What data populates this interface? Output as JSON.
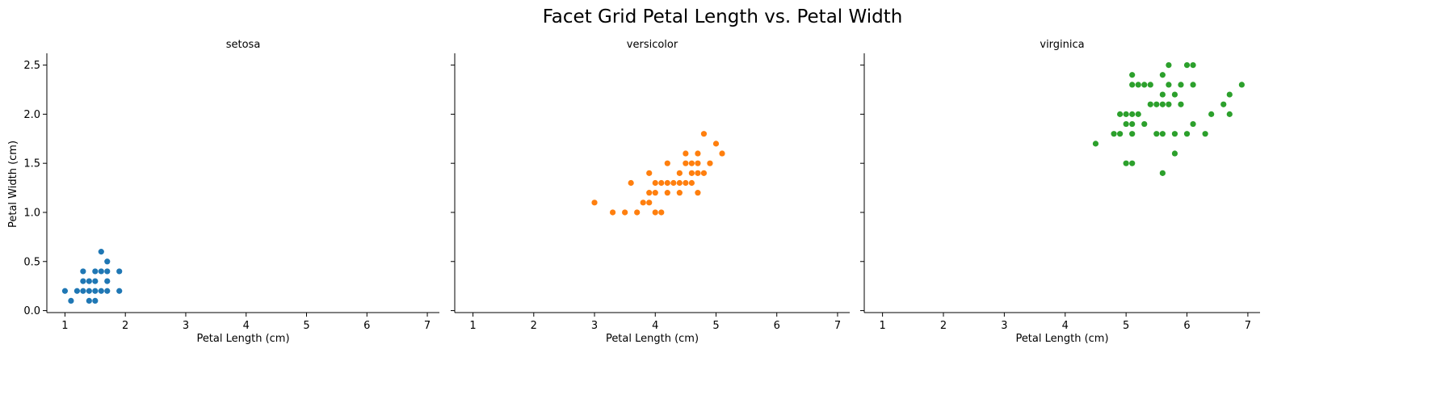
{
  "chart_data": {
    "type": "scatter",
    "title": "Facet Grid Petal Length  vs. Petal Width",
    "ylabel": "Petal Width (cm)",
    "xlim": [
      0.7,
      7.2
    ],
    "ylim": [
      -0.02,
      2.62
    ],
    "x_ticks": [
      "1",
      "2",
      "3",
      "4",
      "5",
      "6",
      "7"
    ],
    "y_ticks": [
      "0.0",
      "0.5",
      "1.0",
      "1.5",
      "2.0",
      "2.5"
    ],
    "shared_y": true,
    "grid": false,
    "facets": [
      {
        "title": "setosa",
        "xlabel": "Petal Length (cm)",
        "color": "#1f77b4",
        "points": [
          [
            1.0,
            0.2
          ],
          [
            1.1,
            0.1
          ],
          [
            1.2,
            0.2
          ],
          [
            1.3,
            0.2
          ],
          [
            1.3,
            0.3
          ],
          [
            1.3,
            0.4
          ],
          [
            1.4,
            0.1
          ],
          [
            1.4,
            0.2
          ],
          [
            1.4,
            0.3
          ],
          [
            1.5,
            0.1
          ],
          [
            1.5,
            0.2
          ],
          [
            1.5,
            0.3
          ],
          [
            1.5,
            0.4
          ],
          [
            1.6,
            0.2
          ],
          [
            1.6,
            0.4
          ],
          [
            1.6,
            0.6
          ],
          [
            1.7,
            0.2
          ],
          [
            1.7,
            0.3
          ],
          [
            1.7,
            0.4
          ],
          [
            1.7,
            0.5
          ],
          [
            1.9,
            0.2
          ],
          [
            1.9,
            0.4
          ]
        ]
      },
      {
        "title": "versicolor",
        "xlabel": "Petal Length (cm)",
        "color": "#ff7f0e",
        "points": [
          [
            3.0,
            1.1
          ],
          [
            3.3,
            1.0
          ],
          [
            3.5,
            1.0
          ],
          [
            3.6,
            1.3
          ],
          [
            3.7,
            1.0
          ],
          [
            3.8,
            1.1
          ],
          [
            3.9,
            1.1
          ],
          [
            3.9,
            1.2
          ],
          [
            3.9,
            1.4
          ],
          [
            4.0,
            1.0
          ],
          [
            4.0,
            1.2
          ],
          [
            4.0,
            1.3
          ],
          [
            4.1,
            1.0
          ],
          [
            4.1,
            1.3
          ],
          [
            4.2,
            1.2
          ],
          [
            4.2,
            1.3
          ],
          [
            4.2,
            1.5
          ],
          [
            4.3,
            1.3
          ],
          [
            4.4,
            1.2
          ],
          [
            4.4,
            1.3
          ],
          [
            4.4,
            1.4
          ],
          [
            4.5,
            1.3
          ],
          [
            4.5,
            1.5
          ],
          [
            4.5,
            1.6
          ],
          [
            4.6,
            1.3
          ],
          [
            4.6,
            1.4
          ],
          [
            4.6,
            1.5
          ],
          [
            4.7,
            1.2
          ],
          [
            4.7,
            1.4
          ],
          [
            4.7,
            1.5
          ],
          [
            4.7,
            1.6
          ],
          [
            4.8,
            1.4
          ],
          [
            4.8,
            1.8
          ],
          [
            4.9,
            1.5
          ],
          [
            5.0,
            1.7
          ],
          [
            5.1,
            1.6
          ]
        ]
      },
      {
        "title": "virginica",
        "xlabel": "Petal Length (cm)",
        "color": "#2ca02c",
        "points": [
          [
            4.5,
            1.7
          ],
          [
            4.8,
            1.8
          ],
          [
            4.9,
            1.8
          ],
          [
            4.9,
            2.0
          ],
          [
            5.0,
            1.5
          ],
          [
            5.0,
            1.9
          ],
          [
            5.0,
            2.0
          ],
          [
            5.1,
            1.5
          ],
          [
            5.1,
            1.8
          ],
          [
            5.1,
            1.9
          ],
          [
            5.1,
            2.0
          ],
          [
            5.1,
            2.3
          ],
          [
            5.1,
            2.4
          ],
          [
            5.2,
            2.0
          ],
          [
            5.2,
            2.3
          ],
          [
            5.3,
            1.9
          ],
          [
            5.3,
            2.3
          ],
          [
            5.4,
            2.1
          ],
          [
            5.4,
            2.3
          ],
          [
            5.5,
            1.8
          ],
          [
            5.5,
            2.1
          ],
          [
            5.6,
            1.4
          ],
          [
            5.6,
            1.8
          ],
          [
            5.6,
            2.1
          ],
          [
            5.6,
            2.2
          ],
          [
            5.6,
            2.4
          ],
          [
            5.7,
            2.1
          ],
          [
            5.7,
            2.3
          ],
          [
            5.7,
            2.5
          ],
          [
            5.8,
            1.6
          ],
          [
            5.8,
            1.8
          ],
          [
            5.8,
            2.2
          ],
          [
            5.9,
            2.1
          ],
          [
            5.9,
            2.3
          ],
          [
            6.0,
            1.8
          ],
          [
            6.0,
            2.5
          ],
          [
            6.1,
            1.9
          ],
          [
            6.1,
            2.3
          ],
          [
            6.1,
            2.5
          ],
          [
            6.3,
            1.8
          ],
          [
            6.4,
            2.0
          ],
          [
            6.6,
            2.1
          ],
          [
            6.7,
            2.0
          ],
          [
            6.7,
            2.2
          ],
          [
            6.9,
            2.3
          ]
        ]
      }
    ]
  }
}
